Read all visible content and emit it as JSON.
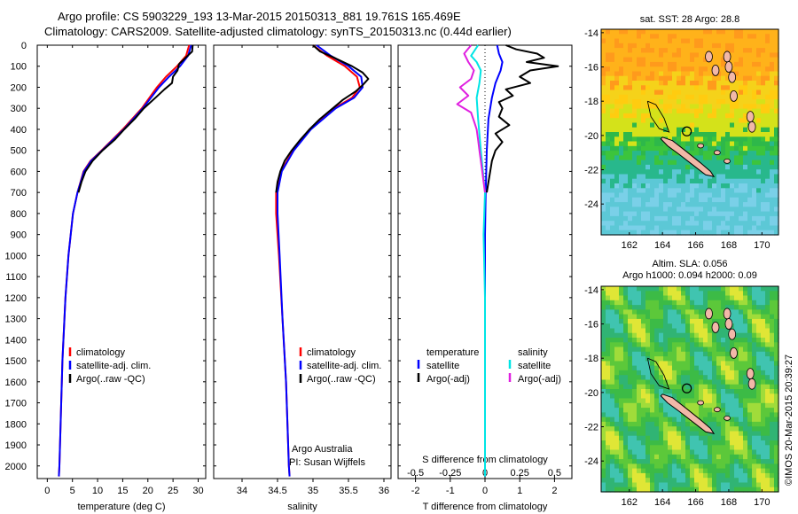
{
  "header": {
    "line1": "Argo profile: CS 5903229_193 13-Mar-2015 20150313_881 19.761S 165.469E",
    "line2": "Climatology: CARS2009. Satellite-adjusted climatology: synTS_20150313.nc (0.44d earlier)"
  },
  "colors": {
    "climatology": "#ff0000",
    "satellite": "#0000ff",
    "argo": "#000000",
    "sal_satellite": "#00e5e5",
    "sal_argo": "#e020e0"
  },
  "depth_axis": {
    "ticks": [
      0,
      100,
      200,
      300,
      400,
      500,
      600,
      700,
      800,
      900,
      1000,
      1100,
      1200,
      1300,
      1400,
      1500,
      1600,
      1700,
      1800,
      1900,
      2000
    ],
    "range": [
      0,
      2060
    ]
  },
  "chart_data": [
    {
      "type": "line",
      "name": "temperature-profile",
      "xlabel": "temperature (deg C)",
      "xlim": [
        -2,
        31.5
      ],
      "xticks": [
        0,
        5,
        10,
        15,
        20,
        25,
        30
      ],
      "legend": [
        "climatology",
        "satellite-adj. clim.",
        "Argo(..raw -QC)"
      ],
      "series": [
        {
          "name": "climatology",
          "depth": [
            0,
            50,
            100,
            150,
            200,
            300,
            400,
            500,
            550,
            600,
            700,
            800,
            1000,
            1200,
            1500,
            2000,
            2050
          ],
          "values": [
            28.2,
            27.6,
            25.8,
            23.6,
            21.8,
            18.8,
            15.0,
            10.8,
            8.6,
            7.2,
            6.0,
            5.1,
            4.2,
            3.6,
            3.0,
            2.4,
            2.3
          ]
        },
        {
          "name": "satellite",
          "depth": [
            0,
            50,
            100,
            150,
            200,
            300,
            400,
            500,
            550,
            600,
            700,
            800,
            1000,
            1200,
            1500,
            2000,
            2050
          ],
          "values": [
            28.6,
            28.0,
            26.4,
            24.2,
            22.2,
            19.0,
            15.2,
            10.9,
            8.7,
            7.3,
            6.0,
            5.1,
            4.2,
            3.6,
            3.0,
            2.4,
            2.3
          ]
        },
        {
          "name": "argo",
          "depth": [
            0,
            30,
            60,
            90,
            120,
            150,
            180,
            210,
            250,
            300,
            350,
            400,
            450,
            500,
            550,
            600,
            650,
            700
          ],
          "values": [
            28.9,
            28.8,
            27.5,
            26.2,
            25.9,
            25.0,
            24.8,
            23.3,
            21.5,
            19.2,
            17.4,
            15.3,
            13.4,
            11.0,
            9.0,
            7.6,
            6.8,
            6.2
          ]
        }
      ]
    },
    {
      "type": "line",
      "name": "salinity-profile",
      "xlabel": "salinity",
      "xlim": [
        33.6,
        36.1
      ],
      "xticks": [
        34,
        34.5,
        35,
        35.5,
        36
      ],
      "xticklabels": [
        "34",
        "34.5",
        "35",
        "35.5",
        "36"
      ],
      "legend": [
        "climatology",
        "satellite-adj. clim.",
        "Argo(..raw -QC)"
      ],
      "annotation": [
        "Argo Australia",
        "PI: Susan Wijffels"
      ],
      "series": [
        {
          "name": "climatology",
          "depth": [
            0,
            50,
            100,
            150,
            200,
            250,
            300,
            400,
            500,
            600,
            700,
            800,
            1000,
            1300,
            1600,
            2000,
            2050
          ],
          "values": [
            35.0,
            35.2,
            35.45,
            35.62,
            35.66,
            35.55,
            35.3,
            34.95,
            34.72,
            34.55,
            34.48,
            34.48,
            34.52,
            34.57,
            34.62,
            34.66,
            34.67
          ]
        },
        {
          "name": "satellite",
          "depth": [
            0,
            50,
            100,
            150,
            200,
            250,
            300,
            400,
            500,
            600,
            700,
            800,
            1000,
            1300,
            1600,
            2000,
            2050
          ],
          "values": [
            35.05,
            35.25,
            35.5,
            35.68,
            35.7,
            35.58,
            35.32,
            34.97,
            34.73,
            34.56,
            34.5,
            34.5,
            34.53,
            34.57,
            34.62,
            34.66,
            34.67
          ]
        },
        {
          "name": "argo",
          "depth": [
            0,
            30,
            60,
            100,
            130,
            160,
            190,
            220,
            260,
            300,
            350,
            400,
            450,
            500,
            550,
            600,
            650,
            700
          ],
          "values": [
            35.0,
            35.1,
            35.3,
            35.55,
            35.7,
            35.78,
            35.7,
            35.6,
            35.42,
            35.28,
            35.1,
            34.95,
            34.82,
            34.7,
            34.6,
            34.54,
            34.5,
            34.48
          ]
        }
      ]
    },
    {
      "type": "line",
      "name": "difference-profile",
      "xlabel_top": "S difference from climatology",
      "xlabel": "T difference from climatology",
      "xlim": [
        -2.5,
        2.5
      ],
      "xticks": [
        -2,
        -1,
        0,
        1,
        2
      ],
      "top_ticks": [
        -0.5,
        -0.25,
        0,
        0.25,
        0.5
      ],
      "top_ticklabels": [
        "-0.5",
        "-0.25",
        "0",
        "0.25",
        "0.5"
      ],
      "legend_temperature": {
        "title": "temperature",
        "items": [
          "satellite",
          "Argo(-adj)"
        ]
      },
      "legend_salinity": {
        "title": "salinity",
        "items": [
          "satellite",
          "Argo(-adj)"
        ]
      },
      "series": [
        {
          "name": "T satellite",
          "depth": [
            0,
            40,
            80,
            120,
            180,
            250,
            350,
            500,
            700,
            900,
            1200,
            1600,
            2050
          ],
          "values": [
            0.35,
            0.4,
            0.5,
            0.45,
            0.3,
            0.2,
            0.1,
            0.05,
            0.02,
            0.0,
            0.0,
            0.0,
            0.0
          ]
        },
        {
          "name": "T argo",
          "depth": [
            0,
            20,
            40,
            60,
            80,
            100,
            120,
            150,
            180,
            210,
            240,
            270,
            300,
            340,
            380,
            420,
            460,
            500,
            550,
            600,
            650,
            700
          ],
          "values": [
            0.6,
            0.9,
            1.5,
            1.7,
            1.2,
            2.1,
            1.3,
            1.0,
            1.3,
            0.6,
            0.8,
            0.4,
            0.5,
            0.4,
            0.7,
            0.3,
            0.5,
            0.3,
            0.2,
            0.15,
            0.1,
            0.05
          ]
        },
        {
          "name": "S satellite",
          "depth": [
            0,
            50,
            80,
            120,
            180,
            250,
            350,
            500,
            700,
            900,
            1200,
            1600,
            2050
          ],
          "values": [
            -0.05,
            -0.1,
            -0.06,
            -0.03,
            -0.04,
            -0.06,
            -0.05,
            -0.03,
            0.0,
            -0.01,
            0.0,
            0.0,
            0.0
          ]
        },
        {
          "name": "S argo",
          "depth": [
            0,
            40,
            80,
            120,
            160,
            200,
            240,
            280,
            320,
            360,
            400,
            450,
            500,
            550,
            600,
            650,
            700
          ],
          "values": [
            -0.1,
            -0.15,
            -0.12,
            -0.08,
            -0.1,
            -0.18,
            -0.12,
            -0.2,
            -0.1,
            -0.08,
            -0.06,
            -0.05,
            -0.04,
            -0.03,
            -0.02,
            -0.01,
            0.0
          ]
        }
      ]
    }
  ],
  "maps": [
    {
      "title": "sat. SST: 28 Argo: 28.8",
      "subtitle": "",
      "type": "sst"
    },
    {
      "title": "Altim. SLA: 0.056",
      "subtitle": "Argo h1000: 0.094 h2000: 0.09",
      "type": "sla"
    }
  ],
  "map_axes": {
    "lat_ticks": [
      -14,
      -16,
      -18,
      -20,
      -22,
      -24
    ],
    "lon_ticks": [
      162,
      164,
      166,
      168,
      170
    ],
    "lat_range": [
      -25.8,
      -13.8
    ],
    "lon_range": [
      160.3,
      171.0
    ]
  },
  "float_position": {
    "lat": -19.761,
    "lon": 165.469
  },
  "credit": "©IMOS 20-Mar-2015 20:39:27"
}
